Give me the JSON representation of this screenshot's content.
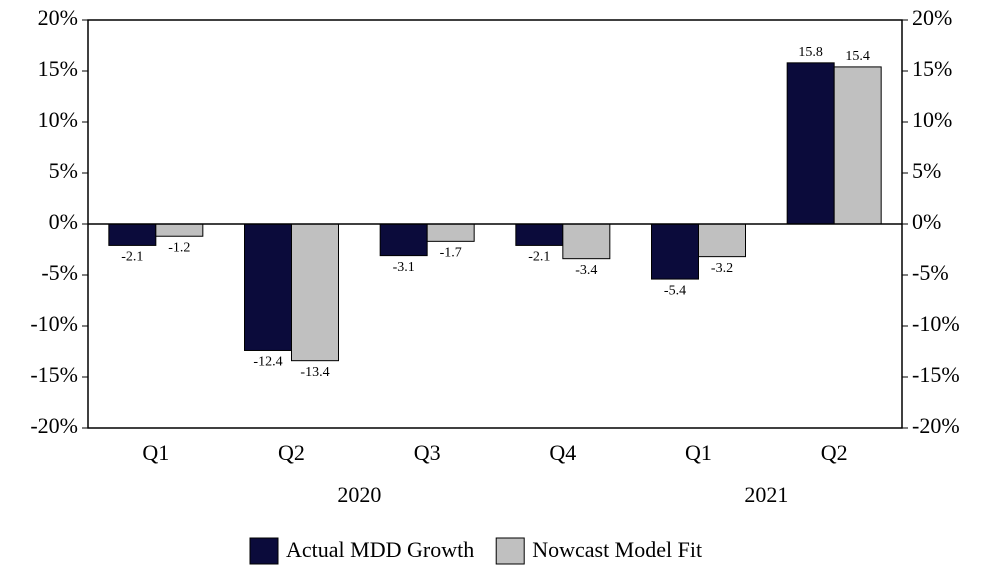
{
  "chart_data": {
    "type": "bar",
    "categories": [
      "Q1",
      "Q2",
      "Q3",
      "Q4",
      "Q1",
      "Q2"
    ],
    "group_labels": [
      "2020",
      "2021"
    ],
    "series": [
      {
        "name": "Actual MDD Growth",
        "color": "#0b0b3b",
        "values": [
          -2.1,
          -12.4,
          -3.1,
          -2.1,
          -5.4,
          15.8
        ]
      },
      {
        "name": "Nowcast Model Fit",
        "color": "#c0c0c0",
        "values": [
          -1.2,
          -13.4,
          -1.7,
          -3.4,
          -3.2,
          15.4
        ]
      }
    ],
    "ylim": [
      -20,
      20
    ],
    "yticks": [
      {
        "value": -20,
        "label": "-20%"
      },
      {
        "value": -15,
        "label": "-15%"
      },
      {
        "value": -10,
        "label": "-10%"
      },
      {
        "value": -5,
        "label": "-5%"
      },
      {
        "value": 0,
        "label": "0%"
      },
      {
        "value": 5,
        "label": "5%"
      },
      {
        "value": 10,
        "label": "10%"
      },
      {
        "value": 15,
        "label": "15%"
      },
      {
        "value": 20,
        "label": "20%"
      }
    ],
    "y2lim": [
      -20,
      20
    ],
    "y2ticks": [
      {
        "value": -20,
        "label": "-20%"
      },
      {
        "value": -15,
        "label": "-15%"
      },
      {
        "value": -10,
        "label": "-10%"
      },
      {
        "value": -5,
        "label": "-5%"
      },
      {
        "value": 0,
        "label": "0%"
      },
      {
        "value": 5,
        "label": "5%"
      },
      {
        "value": 10,
        "label": "10%"
      },
      {
        "value": 15,
        "label": "15%"
      },
      {
        "value": 20,
        "label": "20%"
      }
    ],
    "grid": false,
    "legend": "bottom"
  }
}
